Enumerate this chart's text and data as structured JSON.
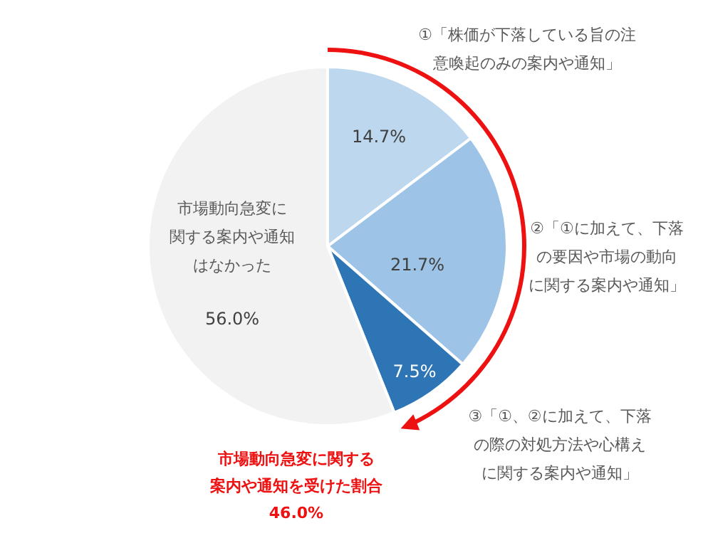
{
  "chart_data": {
    "type": "pie",
    "categories": [
      "①「株価が下落している旨の注意喚起のみの案内や通知」",
      "②「①に加えて、下落の要因や市場の動向に関する案内や通知」",
      "③「①、②に加えて、下落の際の対処方法や心構えに関する案内や通知」",
      "市場動向急変に関する案内や通知はなかった"
    ],
    "values": [
      14.7,
      21.7,
      7.5,
      56.0
    ],
    "value_labels": [
      "14.7%",
      "21.7%",
      "7.5%",
      "56.0%"
    ],
    "colors": [
      "#bdd7ee",
      "#9dc3e6",
      "#2e75b6",
      "#f2f2f2"
    ],
    "annotations": [
      "市場動向急変に関する案内や通知を受けた割合46.0%"
    ]
  }
}
